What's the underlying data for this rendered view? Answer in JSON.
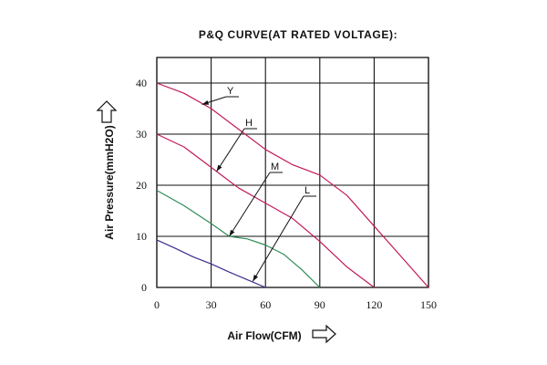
{
  "chart_data": {
    "type": "line",
    "title": "P&Q CURVE(AT RATED VOLTAGE):",
    "xlabel": "Air Flow(CFM)",
    "ylabel": "Air Pressure(mmH2O)",
    "xlim": [
      0,
      150
    ],
    "ylim": [
      0,
      45
    ],
    "xticks": [
      "0",
      "30",
      "60",
      "90",
      "120",
      "150"
    ],
    "yticks": [
      "0",
      "10",
      "20",
      "30",
      "40"
    ],
    "grid": true,
    "series": [
      {
        "name": "Y",
        "color": "#c2185b",
        "x": [
          0,
          15,
          30,
          45,
          60,
          75,
          90,
          105,
          120,
          135,
          150
        ],
        "y": [
          40,
          38,
          35,
          31,
          27,
          24,
          22,
          18,
          12,
          6,
          0
        ]
      },
      {
        "name": "H",
        "color": "#c2185b",
        "x": [
          0,
          15,
          30,
          45,
          60,
          75,
          90,
          105,
          120
        ],
        "y": [
          30,
          27.5,
          23.5,
          19.5,
          16.5,
          13.5,
          9,
          4,
          0
        ]
      },
      {
        "name": "M",
        "color": "#2e8b57",
        "x": [
          0,
          15,
          30,
          40,
          50,
          60,
          70,
          80,
          90
        ],
        "y": [
          19,
          16,
          12.5,
          10,
          9.5,
          8.3,
          6.5,
          3.5,
          0
        ]
      },
      {
        "name": "L",
        "color": "#3a2d8f",
        "x": [
          0,
          10,
          20,
          30,
          40,
          50,
          60
        ],
        "y": [
          9.3,
          7.7,
          6,
          4.6,
          3,
          1.5,
          0
        ]
      }
    ]
  }
}
